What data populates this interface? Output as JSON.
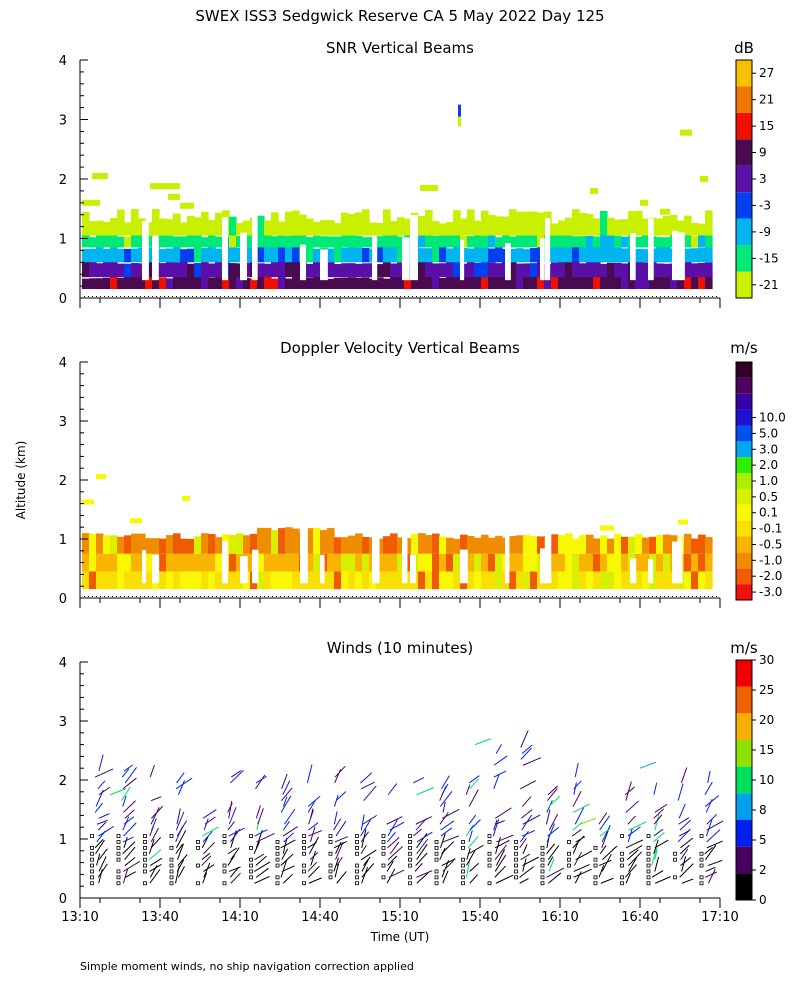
{
  "title": "SWEX ISS3 Sedgwick Reserve CA   5 May 2022 Day 125",
  "footnote": "Simple moment winds, no ship navigation correction applied",
  "colors": {
    "snr": [
      "#c8f000",
      "#00e878",
      "#00b4f0",
      "#0040f0",
      "#5a10a8",
      "#4a0a50",
      "#f01000",
      "#f07800",
      "#f8c000"
    ],
    "vel": [
      "#f01010",
      "#f05a00",
      "#f08c00",
      "#f8b400",
      "#f8e000",
      "#f8f800",
      "#d8f000",
      "#a8f000",
      "#30f000",
      "#00a8f0",
      "#0050f0",
      "#2010d0",
      "#3a00a8",
      "#500060",
      "#300028"
    ],
    "wind": [
      "#000000",
      "#4a0060",
      "#0020f0",
      "#00a0f0",
      "#00e060",
      "#90e000",
      "#f8b000",
      "#f06000",
      "#f00000"
    ]
  },
  "chart_data": [
    {
      "type": "heatmap",
      "title": "SNR Vertical Beams",
      "units": "dB",
      "ylim": [
        0,
        4
      ],
      "yticks": [
        "0",
        "1",
        "2",
        "3",
        "4"
      ],
      "colorbar_labels": [
        "-21",
        "-15",
        "-9",
        "-3",
        "3",
        "9",
        "15",
        "21",
        "27"
      ],
      "layers": [
        {
          "from": 0.15,
          "to": 0.35,
          "value": 9
        },
        {
          "from": 0.35,
          "to": 0.6,
          "value": 3
        },
        {
          "from": 0.6,
          "to": 0.85,
          "value": -9
        },
        {
          "from": 0.85,
          "to": 1.05,
          "value": -15
        },
        {
          "from": 1.05,
          "to": 1.3,
          "value": -21
        }
      ]
    },
    {
      "type": "heatmap",
      "title": "Doppler Velocity Vertical Beams",
      "units": "m/s",
      "ylabel": "Altitude (km)",
      "ylim": [
        0,
        4
      ],
      "yticks": [
        "0",
        "1",
        "2",
        "3",
        "4"
      ],
      "colorbar_labels": [
        "-3.0",
        "-2.0",
        "-1.0",
        "-0.5",
        "-0.1",
        "0.1",
        "0.5",
        "1.0",
        "2.0",
        "3.0",
        "5.0",
        "10.0"
      ],
      "layers": [
        {
          "from": 0.15,
          "to": 0.45,
          "value": -0.1
        },
        {
          "from": 0.45,
          "to": 0.75,
          "value": -0.5
        },
        {
          "from": 0.75,
          "to": 1.05,
          "value": -1.0
        }
      ]
    },
    {
      "type": "scatter",
      "title": "Winds (10 minutes)",
      "units": "m/s",
      "xlabel": "Time (UT)",
      "ylim": [
        0,
        4
      ],
      "yticks": [
        "0",
        "1",
        "2",
        "3",
        "4"
      ],
      "xticks": [
        "13:10",
        "13:40",
        "14:10",
        "14:40",
        "15:10",
        "15:40",
        "16:10",
        "16:40",
        "17:10"
      ],
      "colorbar_labels": [
        "0",
        "2",
        "5",
        "8",
        "10",
        "15",
        "20",
        "25",
        "30"
      ]
    }
  ]
}
